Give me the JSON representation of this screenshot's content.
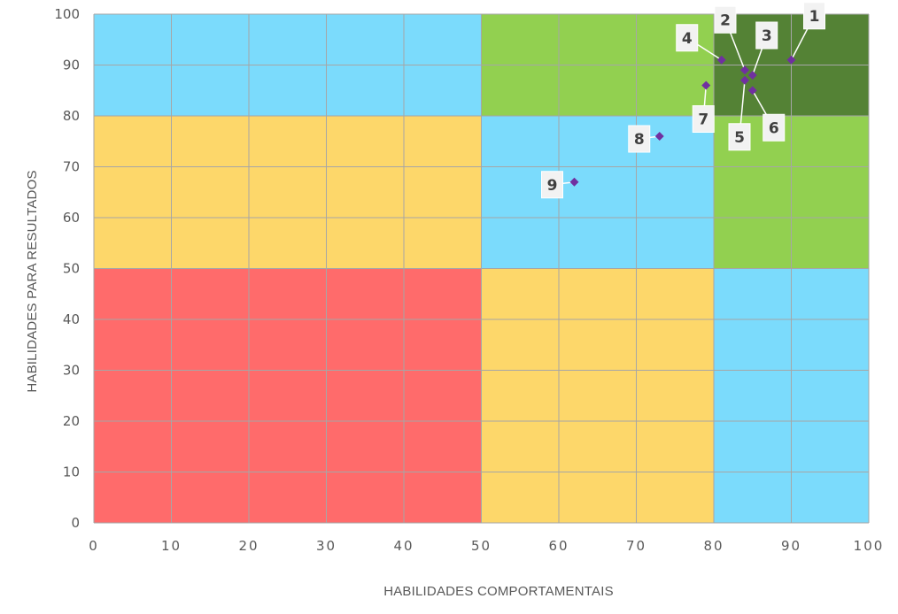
{
  "chart_data": {
    "type": "scatter",
    "xlabel": "HABILIDADES COMPORTAMENTAIS",
    "ylabel": "HABILIDADES PARA RESULTADOS",
    "xlim": [
      0,
      100
    ],
    "ylim": [
      0,
      100
    ],
    "x_ticks": [
      0,
      10,
      20,
      30,
      40,
      50,
      60,
      70,
      80,
      90,
      100
    ],
    "y_ticks": [
      0,
      10,
      20,
      30,
      40,
      50,
      60,
      70,
      80,
      90,
      100
    ],
    "grid": true,
    "background_zones": [
      {
        "x": [
          0,
          50
        ],
        "y": [
          0,
          50
        ],
        "color": "#FF6B6B"
      },
      {
        "x": [
          50,
          80
        ],
        "y": [
          0,
          50
        ],
        "color": "#FDD76A"
      },
      {
        "x": [
          80,
          100
        ],
        "y": [
          0,
          50
        ],
        "color": "#7BDBFC"
      },
      {
        "x": [
          0,
          50
        ],
        "y": [
          50,
          80
        ],
        "color": "#FDD76A"
      },
      {
        "x": [
          50,
          80
        ],
        "y": [
          50,
          80
        ],
        "color": "#7BDBFC"
      },
      {
        "x": [
          80,
          100
        ],
        "y": [
          50,
          80
        ],
        "color": "#92D050"
      },
      {
        "x": [
          0,
          50
        ],
        "y": [
          80,
          100
        ],
        "color": "#7BDBFC"
      },
      {
        "x": [
          50,
          80
        ],
        "y": [
          80,
          100
        ],
        "color": "#92D050"
      },
      {
        "x": [
          80,
          100
        ],
        "y": [
          80,
          100
        ],
        "color": "#548235"
      }
    ],
    "marker_color": "#7030A0",
    "points": [
      {
        "label": "1",
        "x": 90,
        "y": 91
      },
      {
        "label": "2",
        "x": 84,
        "y": 89
      },
      {
        "label": "3",
        "x": 85,
        "y": 88
      },
      {
        "label": "4",
        "x": 81,
        "y": 91
      },
      {
        "label": "5",
        "x": 84,
        "y": 87
      },
      {
        "label": "6",
        "x": 85,
        "y": 85
      },
      {
        "label": "7",
        "x": 79,
        "y": 86
      },
      {
        "label": "8",
        "x": 73,
        "y": 76
      },
      {
        "label": "9",
        "x": 62,
        "y": 67
      }
    ]
  }
}
